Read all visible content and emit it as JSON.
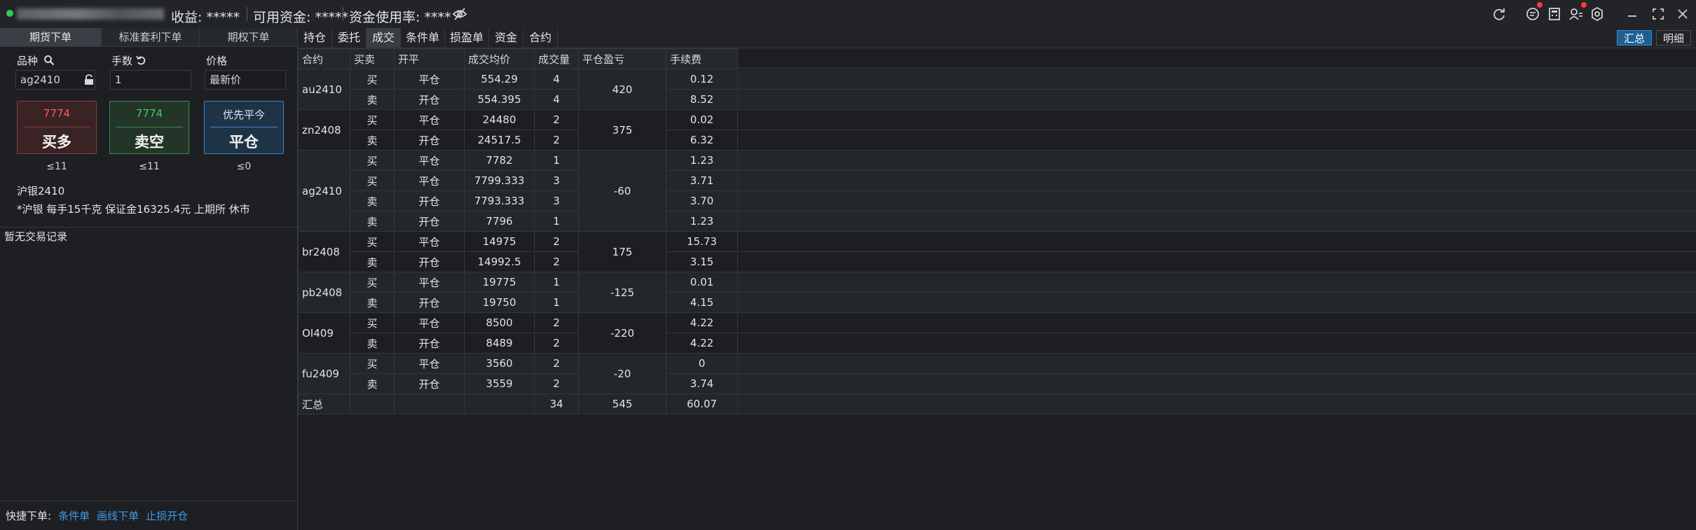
{
  "titlebar": {
    "profit_label": "收益: *****",
    "available_label": "可用资金: *****",
    "usage_label": "资金使用率: ****"
  },
  "colors": {
    "buy_red": "#ff4d4f",
    "sell_green": "#36c55a",
    "accent_blue": "#3d9be9",
    "status_green": "#2bd04a"
  },
  "left": {
    "tabs": [
      "期货下单",
      "标准套利下单",
      "期权下单"
    ],
    "variety_label": "品种",
    "qty_label": "手数",
    "price_label": "价格",
    "variety_value": "ag2410",
    "qty_value": "1",
    "price_value": "最新价",
    "buy": {
      "price": "7774",
      "label": "买多",
      "limit": "≤11"
    },
    "sell": {
      "price": "7774",
      "label": "卖空",
      "limit": "≤11"
    },
    "close": {
      "price": "优先平今",
      "label": "平仓",
      "limit": "≤0"
    },
    "contract_name": "沪银2410",
    "contract_info": "*沪银 每手15千克 保证金16325.4元 上期所 休市",
    "no_records": "暂无交易记录",
    "quick_label": "快捷下单:",
    "quick_links": [
      "条件单",
      "画线下单",
      "止损开仓"
    ]
  },
  "right": {
    "tabs": [
      "持仓",
      "委托",
      "成交",
      "条件单",
      "损盈单",
      "资金",
      "合约"
    ],
    "active_tab": "成交",
    "view_buttons": [
      "汇总",
      "明细"
    ],
    "columns": [
      "合约",
      "买卖",
      "开平",
      "成交均价",
      "成交量",
      "平仓盈亏",
      "手续费"
    ],
    "groups": [
      {
        "contract": "au2410",
        "pnl": "420",
        "pnl_sign": "pos",
        "rows": [
          {
            "side": "买",
            "oc": "平仓",
            "price": "554.29",
            "vol": "4",
            "fee": "0.12"
          },
          {
            "side": "卖",
            "oc": "开仓",
            "price": "554.395",
            "vol": "4",
            "fee": "8.52"
          }
        ]
      },
      {
        "contract": "zn2408",
        "pnl": "375",
        "pnl_sign": "pos",
        "rows": [
          {
            "side": "买",
            "oc": "平仓",
            "price": "24480",
            "vol": "2",
            "fee": "0.02"
          },
          {
            "side": "卖",
            "oc": "开仓",
            "price": "24517.5",
            "vol": "2",
            "fee": "6.32"
          }
        ]
      },
      {
        "contract": "ag2410",
        "pnl": "-60",
        "pnl_sign": "neg",
        "rows": [
          {
            "side": "买",
            "oc": "平仓",
            "price": "7782",
            "vol": "1",
            "fee": "1.23"
          },
          {
            "side": "买",
            "oc": "平仓",
            "price": "7799.333",
            "vol": "3",
            "fee": "3.71"
          },
          {
            "side": "卖",
            "oc": "开仓",
            "price": "7793.333",
            "vol": "3",
            "fee": "3.70"
          },
          {
            "side": "卖",
            "oc": "开仓",
            "price": "7796",
            "vol": "1",
            "fee": "1.23"
          }
        ]
      },
      {
        "contract": "br2408",
        "pnl": "175",
        "pnl_sign": "pos",
        "rows": [
          {
            "side": "买",
            "oc": "平仓",
            "price": "14975",
            "vol": "2",
            "fee": "15.73"
          },
          {
            "side": "卖",
            "oc": "开仓",
            "price": "14992.5",
            "vol": "2",
            "fee": "3.15"
          }
        ]
      },
      {
        "contract": "pb2408",
        "pnl": "-125",
        "pnl_sign": "neg",
        "rows": [
          {
            "side": "买",
            "oc": "平仓",
            "price": "19775",
            "vol": "1",
            "fee": "0.01"
          },
          {
            "side": "卖",
            "oc": "开仓",
            "price": "19750",
            "vol": "1",
            "fee": "4.15"
          }
        ]
      },
      {
        "contract": "OI409",
        "pnl": "-220",
        "pnl_sign": "neg",
        "rows": [
          {
            "side": "买",
            "oc": "平仓",
            "price": "8500",
            "vol": "2",
            "fee": "4.22"
          },
          {
            "side": "卖",
            "oc": "开仓",
            "price": "8489",
            "vol": "2",
            "fee": "4.22"
          }
        ]
      },
      {
        "contract": "fu2409",
        "pnl": "-20",
        "pnl_sign": "neg",
        "rows": [
          {
            "side": "买",
            "oc": "平仓",
            "price": "3560",
            "vol": "2",
            "fee": "0"
          },
          {
            "side": "卖",
            "oc": "开仓",
            "price": "3559",
            "vol": "2",
            "fee": "3.74"
          }
        ]
      }
    ],
    "total": {
      "label": "汇总",
      "vol": "34",
      "pnl": "545",
      "fee": "60.07"
    }
  }
}
